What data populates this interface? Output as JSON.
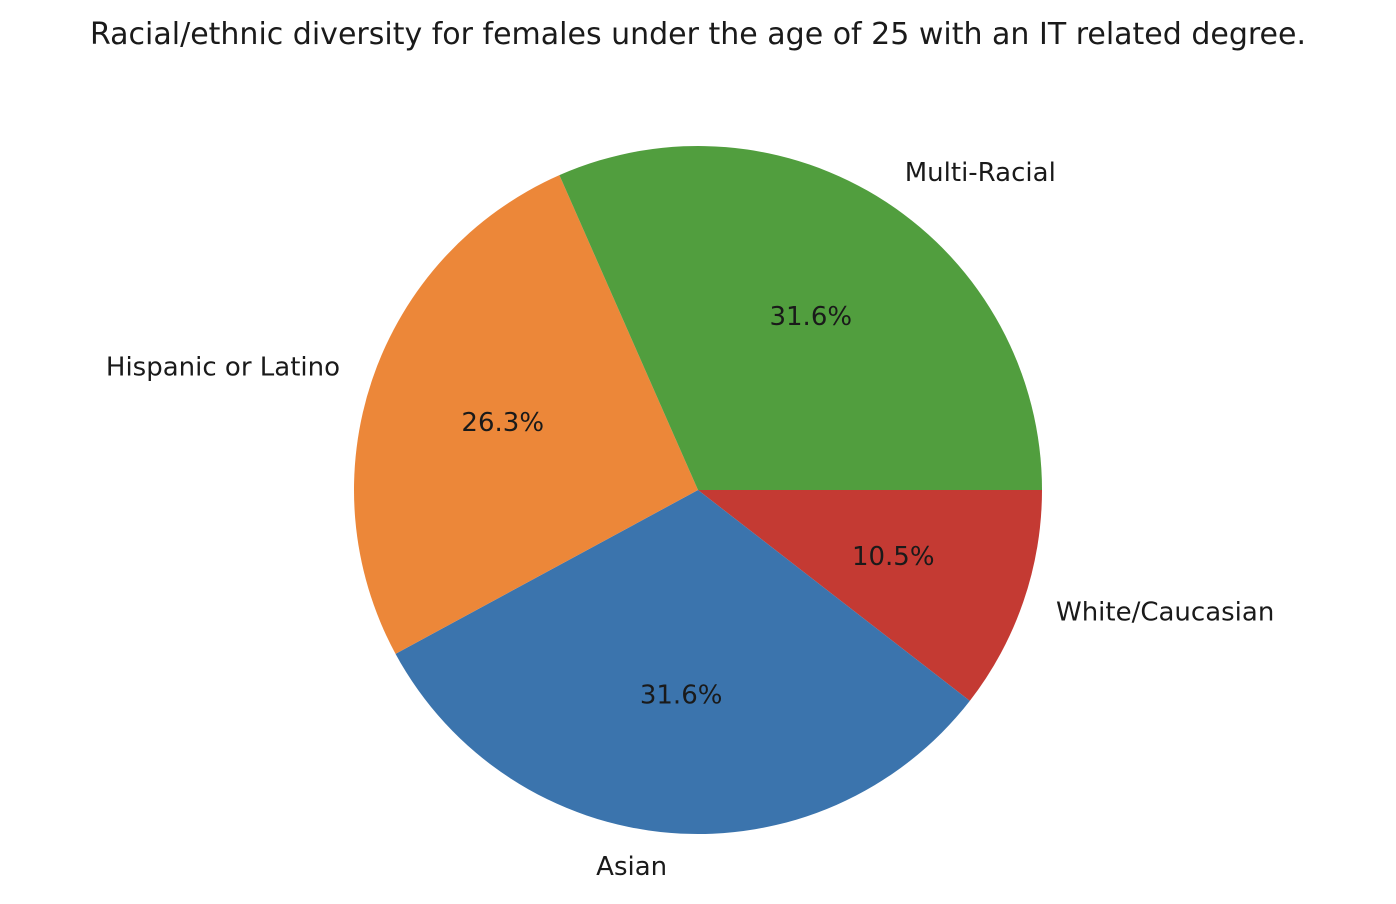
{
  "chart_data": {
    "type": "pie",
    "title": "Racial/ethnic diversity for females under the age of 25 with an IT related degree.",
    "categories": [
      "White/Caucasian",
      "Asian",
      "Hispanic or Latino",
      "Multi-Racial"
    ],
    "values": [
      10.5,
      31.6,
      26.3,
      31.6
    ],
    "percent_labels": [
      "10.5%",
      "31.6%",
      "26.3%",
      "31.6%"
    ],
    "colors": [
      "#c43a33",
      "#3b74ad",
      "#ec8739",
      "#519e3e"
    ],
    "start_angle_deg": 0,
    "direction": "clockwise",
    "legend": "none"
  }
}
